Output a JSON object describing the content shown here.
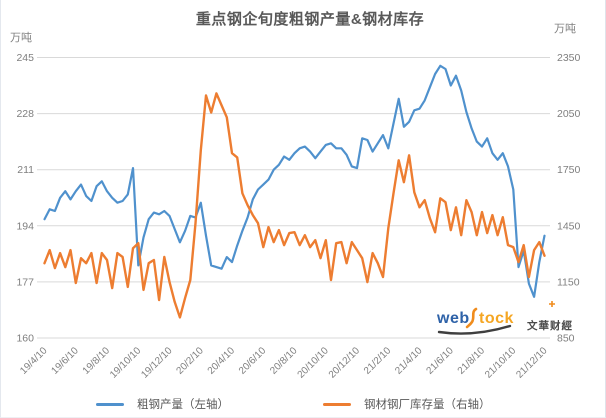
{
  "title": "重点钢企旬度粗钢产量&钢材库存",
  "left_axis": {
    "unit": "万吨",
    "max": 245,
    "min": 160,
    "ticks": [
      245,
      228,
      211,
      194,
      177,
      160
    ]
  },
  "right_axis": {
    "unit": "万吨",
    "max": 2350,
    "min": 850,
    "ticks": [
      2350,
      2050,
      1750,
      1450,
      1150,
      850
    ]
  },
  "legend": [
    {
      "label": "粗钢产量（左轴）",
      "color": "#4f91cd"
    },
    {
      "label": "钢材钢厂库存量（右轴）",
      "color": "#ed7d31"
    }
  ],
  "watermark": {
    "part1": "web",
    "part2": "tock",
    "part3": "文華财經"
  },
  "chart_data": {
    "type": "line",
    "title": "重点钢企旬度粗钢产量&钢材库存",
    "xlabel": "",
    "ylabel_left": "万吨",
    "ylabel_right": "万吨",
    "grid": true,
    "legend_position": "bottom",
    "left_range": [
      160,
      245
    ],
    "right_range": [
      850,
      2350
    ],
    "x_labels": [
      "19/4/10",
      "19/6/10",
      "19/8/10",
      "19/10/10",
      "19/12/10",
      "20/2/10",
      "20/4/10",
      "20/6/10",
      "20/8/10",
      "20/10/10",
      "20/12/10",
      "21/2/10",
      "21/4/10",
      "21/6/10",
      "21/8/10",
      "21/10/10",
      "21/12/10"
    ],
    "label_every": 6,
    "series": [
      {
        "name": "粗钢产量（左轴）",
        "axis": "left",
        "color": "#4f91cd",
        "values": [
          196,
          199,
          198.5,
          202.5,
          204.5,
          202,
          204.5,
          206.5,
          203,
          201.5,
          206,
          207.5,
          204.5,
          202.5,
          201,
          201.5,
          203.5,
          211.5,
          182,
          190.5,
          196,
          198,
          197.5,
          198.5,
          197,
          193,
          189,
          192.5,
          197,
          196.5,
          201,
          191,
          182,
          181.5,
          181,
          184.5,
          183,
          188,
          192.5,
          196.5,
          202,
          205,
          206.5,
          208,
          211,
          212.5,
          215,
          214,
          216,
          217.5,
          218,
          216.5,
          214.5,
          216.5,
          218.5,
          219,
          217.5,
          217.5,
          215.5,
          212,
          211.5,
          220.5,
          220,
          216.5,
          219,
          221.5,
          217.5,
          225,
          232.5,
          224,
          225.5,
          229,
          229.5,
          232,
          236,
          240,
          242.5,
          241.5,
          236.5,
          239.5,
          235,
          228.5,
          223.5,
          219.5,
          218,
          220.5,
          216,
          214,
          216,
          212,
          205,
          181.5,
          186.5,
          176.5,
          172.5,
          183,
          191
        ]
      },
      {
        "name": "钢材钢厂库存量（右轴）",
        "axis": "right",
        "color": "#ed7d31",
        "values": [
          1250,
          1320,
          1224,
          1304,
          1229,
          1320,
          1144,
          1277,
          1250,
          1304,
          1144,
          1304,
          1267,
          1117,
          1304,
          1283,
          1123,
          1330,
          1357,
          1107,
          1250,
          1267,
          1053,
          1283,
          1150,
          1043,
          960,
          1064,
          1160,
          1464,
          1854,
          2147,
          2056,
          2158,
          2094,
          2030,
          1838,
          1816,
          1624,
          1560,
          1507,
          1464,
          1336,
          1443,
          1363,
          1427,
          1347,
          1411,
          1416,
          1347,
          1400,
          1336,
          1373,
          1277,
          1373,
          1160,
          1357,
          1363,
          1250,
          1363,
          1320,
          1277,
          1149,
          1304,
          1250,
          1176,
          1437,
          1624,
          1800,
          1683,
          1827,
          1629,
          1549,
          1587,
          1490,
          1416,
          1597,
          1576,
          1427,
          1549,
          1400,
          1587,
          1523,
          1400,
          1523,
          1411,
          1507,
          1400,
          1496,
          1347,
          1336,
          1256,
          1347,
          1176,
          1320,
          1363,
          1290
        ]
      }
    ]
  }
}
